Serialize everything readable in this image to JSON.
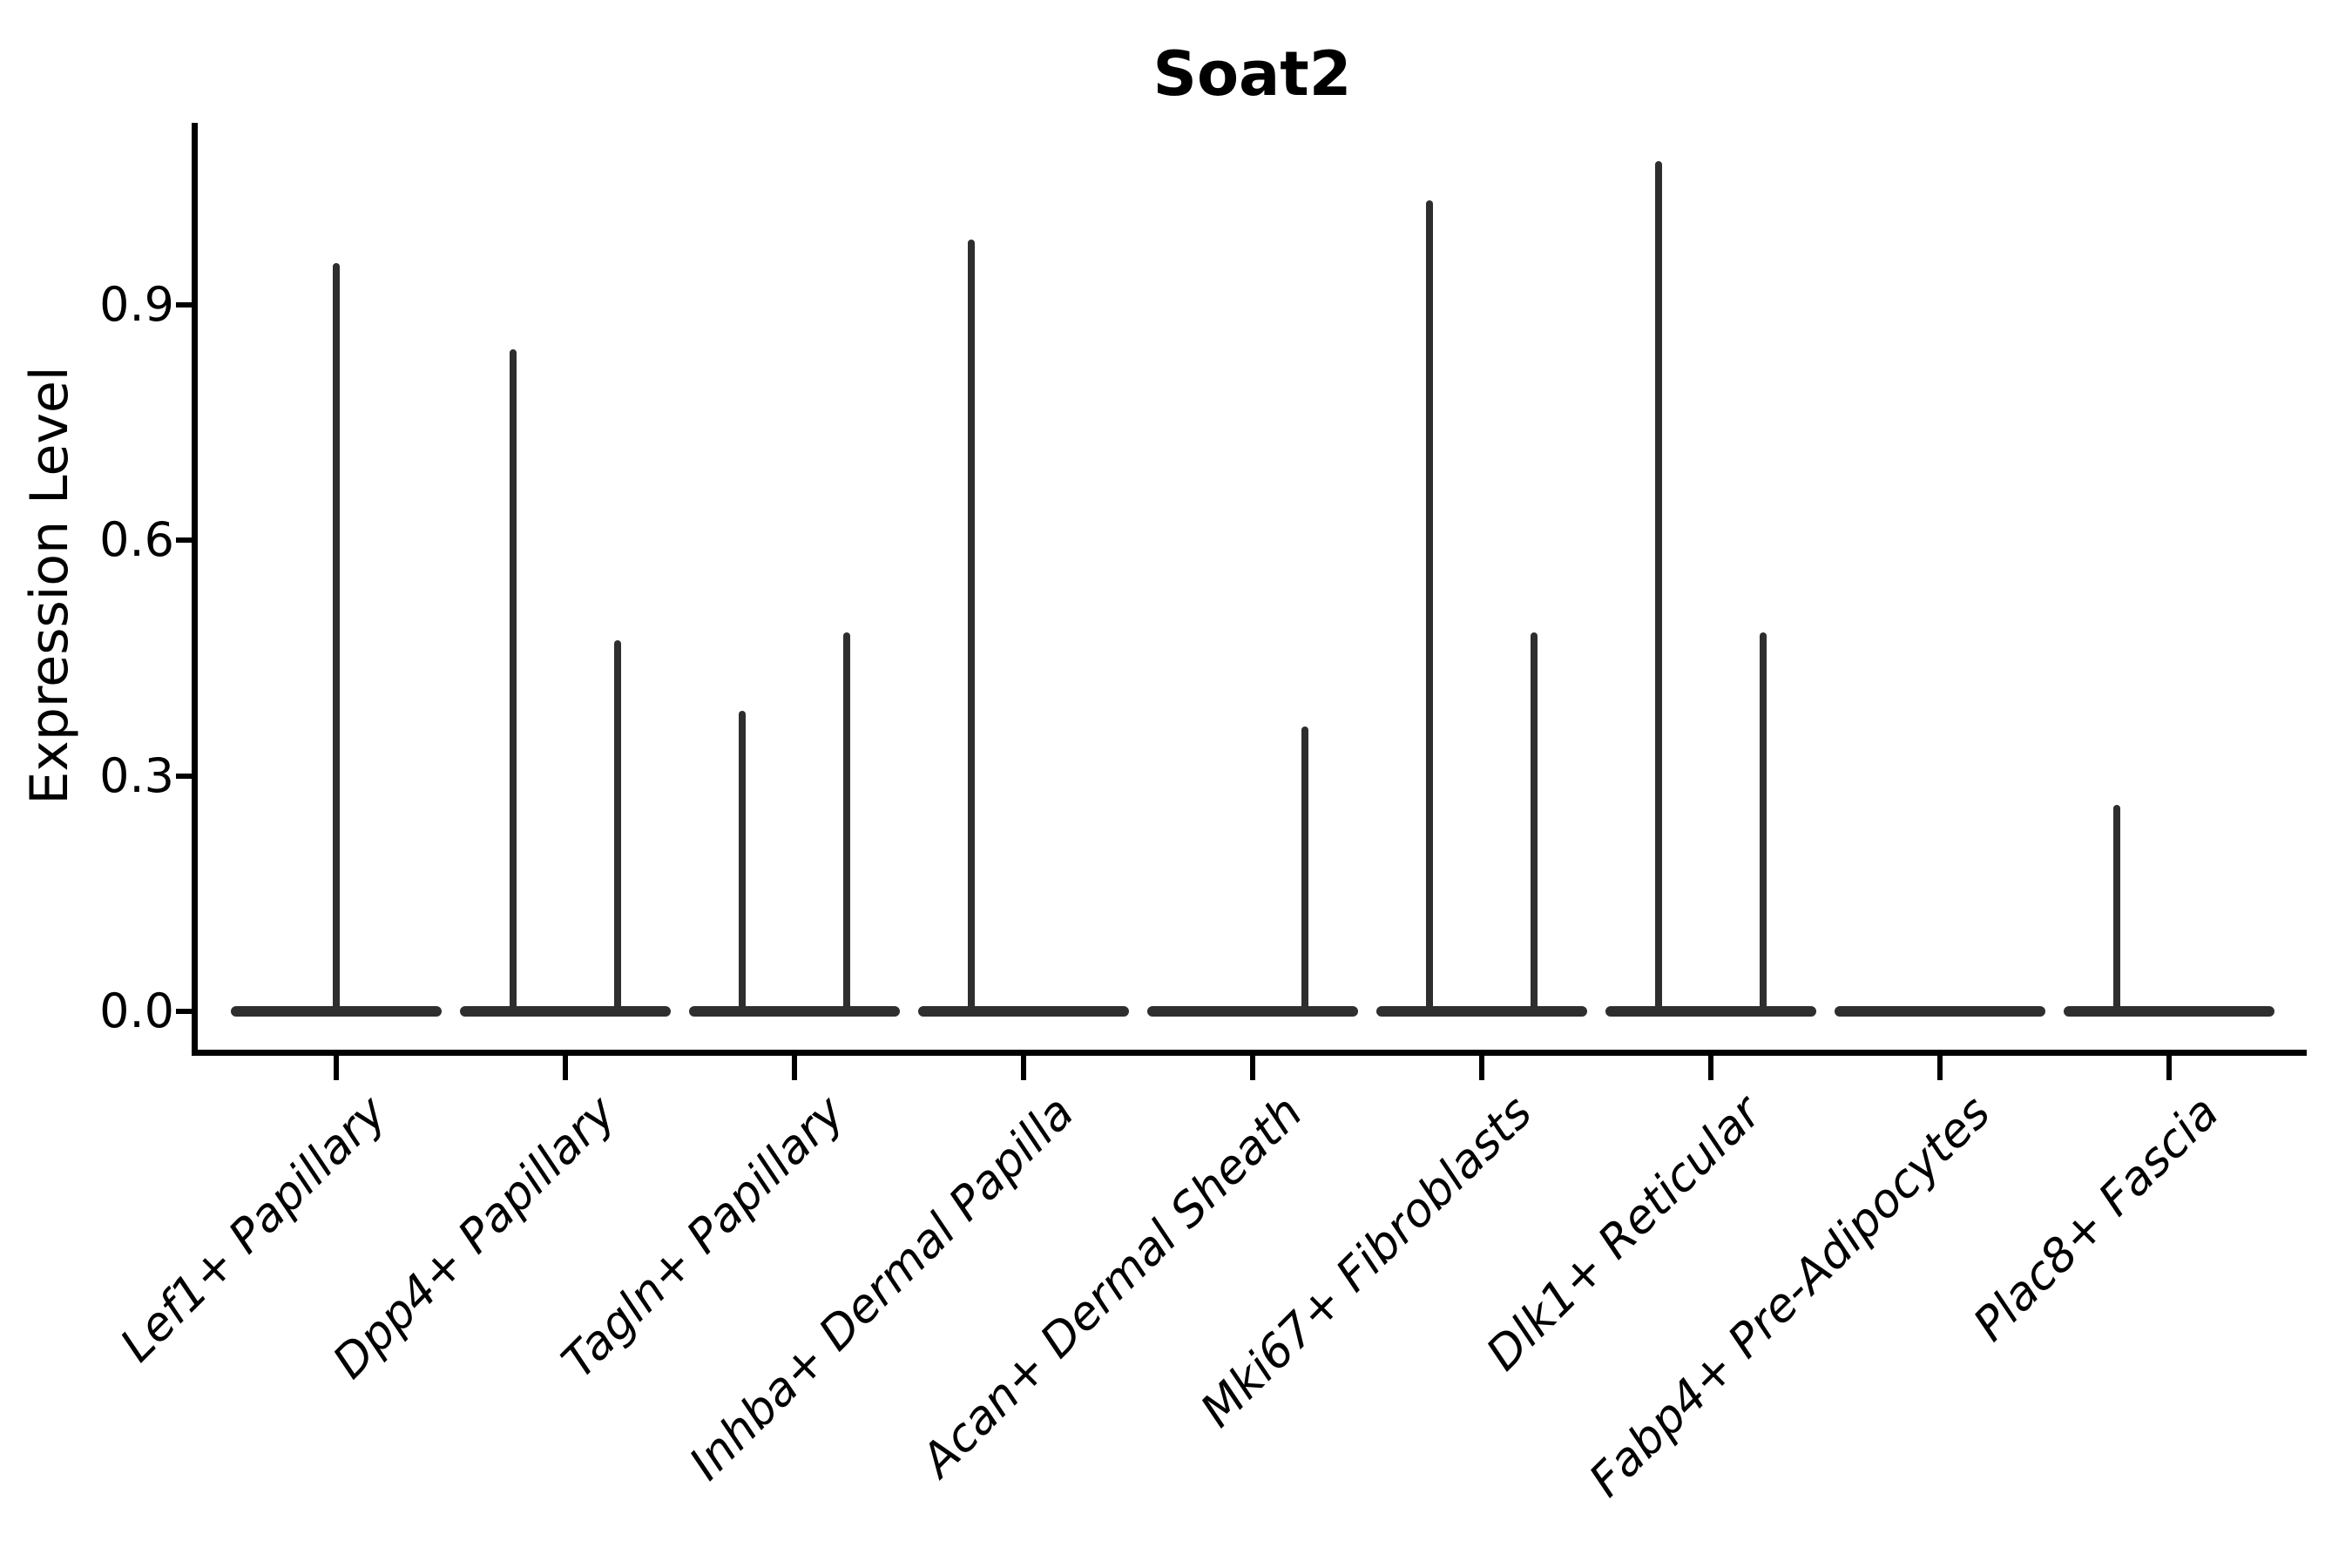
{
  "figure": {
    "title": "Soat2"
  },
  "chart_data": {
    "type": "violin",
    "title": "Soat2",
    "xlabel": "",
    "ylabel": "Expression Level",
    "yticks": [
      "0.0",
      "0.3",
      "0.6",
      "0.9"
    ],
    "ytick_values": [
      0.0,
      0.3,
      0.6,
      0.9
    ],
    "ylim": [
      0,
      1.13
    ],
    "grid": false,
    "legend_position": "none",
    "violin_color": "#2e2e2e",
    "axis_color": "#000000",
    "background_color": "#ffffff",
    "description": "Violin plot of Soat2 expression; every violin is a flat dense base at 0 with a thin vertical tail up to its maximum expression value. Some categories contain two side-by-side (dodged) violins.",
    "categories": [
      "Lef1+ Papillary",
      "Dpp4+ Papillary",
      "Tagln+ Papillary",
      "Inhba+ Dermal Papilla",
      "Acan+ Dermal Sheath",
      "Mki67+ Fibroblasts",
      "Dlk1+ Reticular",
      "Fabp4+ Pre-Adipocytes",
      "Plac8+ Fascia"
    ],
    "series": [
      {
        "category": "Lef1+ Papillary",
        "violins": [
          {
            "position": "center",
            "max_expression": 0.95
          }
        ]
      },
      {
        "category": "Dpp4+ Papillary",
        "violins": [
          {
            "position": "left",
            "max_expression": 0.84
          },
          {
            "position": "right",
            "max_expression": 0.47
          }
        ]
      },
      {
        "category": "Tagln+ Papillary",
        "violins": [
          {
            "position": "left",
            "max_expression": 0.38
          },
          {
            "position": "right",
            "max_expression": 0.48
          }
        ]
      },
      {
        "category": "Inhba+ Dermal Papilla",
        "violins": [
          {
            "position": "left",
            "max_expression": 0.98
          },
          {
            "position": "right",
            "max_expression": 0.0
          }
        ]
      },
      {
        "category": "Acan+ Dermal Sheath",
        "violins": [
          {
            "position": "left",
            "max_expression": 0.0
          },
          {
            "position": "right",
            "max_expression": 0.36
          }
        ]
      },
      {
        "category": "Mki67+ Fibroblasts",
        "violins": [
          {
            "position": "left",
            "max_expression": 1.03
          },
          {
            "position": "right",
            "max_expression": 0.48
          }
        ]
      },
      {
        "category": "Dlk1+ Reticular",
        "violins": [
          {
            "position": "left",
            "max_expression": 1.08
          },
          {
            "position": "right",
            "max_expression": 0.48
          }
        ]
      },
      {
        "category": "Fabp4+ Pre-Adipocytes",
        "violins": [
          {
            "position": "left",
            "max_expression": 0.0
          },
          {
            "position": "right",
            "max_expression": 0.0
          }
        ]
      },
      {
        "category": "Plac8+ Fascia",
        "violins": [
          {
            "position": "left",
            "max_expression": 0.26
          },
          {
            "position": "right",
            "max_expression": 0.0
          }
        ]
      }
    ]
  }
}
